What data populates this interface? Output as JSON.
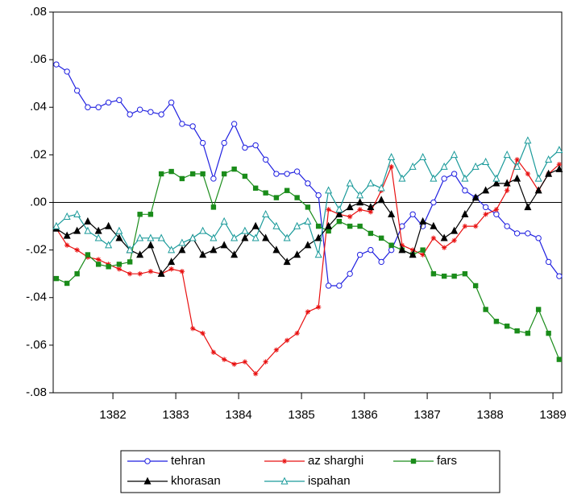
{
  "chart_data": {
    "type": "line",
    "x": [
      1381.1,
      1381.27,
      1381.43,
      1381.6,
      1381.77,
      1381.93,
      1382.1,
      1382.27,
      1382.43,
      1382.6,
      1382.77,
      1382.93,
      1383.1,
      1383.27,
      1383.43,
      1383.6,
      1383.77,
      1383.93,
      1384.1,
      1384.27,
      1384.43,
      1384.6,
      1384.77,
      1384.93,
      1385.1,
      1385.27,
      1385.43,
      1385.6,
      1385.77,
      1385.93,
      1386.1,
      1386.27,
      1386.43,
      1386.6,
      1386.77,
      1386.93,
      1387.1,
      1387.27,
      1387.43,
      1387.6,
      1387.77,
      1387.93,
      1388.1,
      1388.27,
      1388.43,
      1388.6,
      1388.77,
      1388.93,
      1389.1
    ],
    "xlim": [
      1381.05,
      1389.14
    ],
    "xticks": [
      1382,
      1383,
      1384,
      1385,
      1386,
      1387,
      1388,
      1389
    ],
    "ylim": [
      -0.08,
      0.08
    ],
    "yticks": [
      {
        "value": -0.08,
        "label": "-.08"
      },
      {
        "value": -0.06,
        "label": "-.06"
      },
      {
        "value": -0.04,
        "label": "-.04"
      },
      {
        "value": -0.02,
        "label": "-.02"
      },
      {
        "value": 0,
        "label": ".00"
      },
      {
        "value": 0.02,
        "label": ".02"
      },
      {
        "value": 0.04,
        "label": ".04"
      },
      {
        "value": 0.06,
        "label": ".06"
      },
      {
        "value": 0.08,
        "label": ".08"
      }
    ],
    "zero_line": true,
    "series": [
      {
        "name": "tehran",
        "color": "#1f1fe0",
        "marker": "circle-open",
        "values": [
          0.058,
          0.055,
          0.047,
          0.04,
          0.04,
          0.042,
          0.043,
          0.037,
          0.039,
          0.038,
          0.037,
          0.042,
          0.033,
          0.032,
          0.025,
          0.01,
          0.025,
          0.033,
          0.023,
          0.024,
          0.018,
          0.012,
          0.012,
          0.013,
          0.008,
          0.003,
          -0.035,
          -0.035,
          -0.03,
          -0.022,
          -0.02,
          -0.025,
          -0.02,
          -0.01,
          -0.005,
          -0.01,
          0.0,
          0.01,
          0.012,
          0.005,
          0.002,
          -0.002,
          -0.005,
          -0.01,
          -0.013,
          -0.013,
          -0.015,
          -0.025,
          -0.031
        ]
      },
      {
        "name": "az sharghi",
        "color": "#e81010",
        "marker": "asterisk",
        "values": [
          -0.011,
          -0.018,
          -0.02,
          -0.023,
          -0.024,
          -0.026,
          -0.028,
          -0.03,
          -0.03,
          -0.029,
          -0.03,
          -0.028,
          -0.029,
          -0.053,
          -0.055,
          -0.063,
          -0.066,
          -0.068,
          -0.067,
          -0.072,
          -0.067,
          -0.062,
          -0.058,
          -0.055,
          -0.046,
          -0.044,
          -0.003,
          -0.005,
          -0.006,
          -0.003,
          -0.004,
          0.005,
          0.015,
          -0.018,
          -0.02,
          -0.022,
          -0.015,
          -0.019,
          -0.016,
          -0.01,
          -0.01,
          -0.005,
          -0.003,
          0.005,
          0.018,
          0.012,
          0.005,
          0.012,
          0.016
        ]
      },
      {
        "name": "fars",
        "color": "#1a8c1a",
        "marker": "square",
        "values": [
          -0.032,
          -0.034,
          -0.03,
          -0.022,
          -0.026,
          -0.027,
          -0.026,
          -0.025,
          -0.005,
          -0.005,
          0.012,
          0.013,
          0.01,
          0.012,
          0.012,
          -0.002,
          0.012,
          0.014,
          0.011,
          0.006,
          0.004,
          0.002,
          0.005,
          0.002,
          -0.002,
          -0.01,
          -0.012,
          -0.008,
          -0.01,
          -0.01,
          -0.013,
          -0.015,
          -0.018,
          -0.02,
          -0.022,
          -0.02,
          -0.03,
          -0.031,
          -0.031,
          -0.03,
          -0.035,
          -0.045,
          -0.05,
          -0.052,
          -0.054,
          -0.055,
          -0.045,
          -0.055,
          -0.066
        ]
      },
      {
        "name": "khorasan",
        "color": "#000000",
        "marker": "triangle",
        "values": [
          -0.011,
          -0.014,
          -0.012,
          -0.008,
          -0.012,
          -0.01,
          -0.015,
          -0.02,
          -0.022,
          -0.018,
          -0.03,
          -0.025,
          -0.02,
          -0.015,
          -0.022,
          -0.02,
          -0.018,
          -0.022,
          -0.015,
          -0.01,
          -0.015,
          -0.02,
          -0.025,
          -0.022,
          -0.018,
          -0.015,
          -0.01,
          -0.005,
          -0.002,
          0.0,
          -0.002,
          0.001,
          -0.005,
          -0.02,
          -0.022,
          -0.008,
          -0.01,
          -0.015,
          -0.012,
          -0.005,
          0.002,
          0.005,
          0.008,
          0.008,
          0.01,
          -0.002,
          0.005,
          0.012,
          0.014
        ]
      },
      {
        "name": "ispahan",
        "color": "#1a9a9a",
        "marker": "triangle-open",
        "values": [
          -0.01,
          -0.006,
          -0.005,
          -0.012,
          -0.015,
          -0.018,
          -0.012,
          -0.02,
          -0.015,
          -0.015,
          -0.015,
          -0.02,
          -0.017,
          -0.015,
          -0.012,
          -0.015,
          -0.008,
          -0.015,
          -0.012,
          -0.015,
          -0.005,
          -0.01,
          -0.015,
          -0.01,
          -0.008,
          -0.022,
          0.005,
          -0.003,
          0.008,
          0.003,
          0.008,
          0.006,
          0.019,
          0.01,
          0.015,
          0.019,
          0.01,
          0.015,
          0.02,
          0.01,
          0.015,
          0.017,
          0.01,
          0.02,
          0.015,
          0.026,
          0.01,
          0.018,
          0.022
        ]
      }
    ]
  }
}
